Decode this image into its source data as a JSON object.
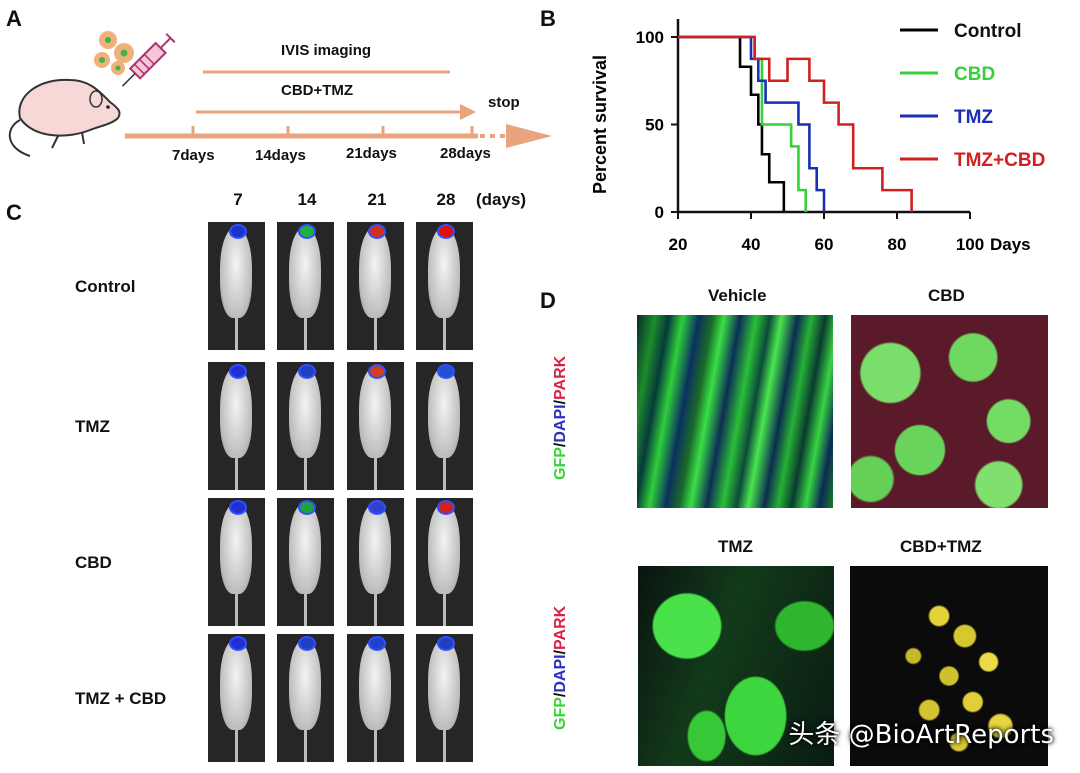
{
  "panels": {
    "a": "A",
    "b": "B",
    "c": "C",
    "d": "D"
  },
  "timeline": {
    "ivis": "IVIS imaging",
    "treatment": "CBD+TMZ",
    "stop": "stop",
    "days": [
      "7days",
      "14days",
      "21days",
      "28days"
    ]
  },
  "chart_data": {
    "type": "line",
    "ylabel": "Percent survival",
    "xlabel": "Days",
    "xlim": [
      20,
      100
    ],
    "ylim": [
      0,
      100
    ],
    "xticks": [
      20,
      40,
      60,
      80,
      100
    ],
    "yticks": [
      0,
      50,
      100
    ],
    "legend_position": "top-right",
    "series": [
      {
        "name": "Control",
        "color": "#000000",
        "x": [
          20,
          37,
          37,
          40,
          40,
          42,
          42,
          43,
          43,
          45,
          45,
          49,
          49
        ],
        "y": [
          100,
          100,
          83,
          83,
          67,
          67,
          50,
          50,
          33,
          33,
          17,
          17,
          0
        ]
      },
      {
        "name": "CBD",
        "color": "#35d03a",
        "x": [
          20,
          41,
          41,
          43,
          43,
          51,
          51,
          53,
          53,
          55,
          55
        ],
        "y": [
          100,
          100,
          87.5,
          87.5,
          50,
          50,
          37.5,
          37.5,
          12.5,
          12.5,
          0
        ]
      },
      {
        "name": "TMZ",
        "color": "#1a2fb5",
        "x": [
          20,
          40,
          40,
          42,
          42,
          44,
          44,
          53,
          53,
          56,
          56,
          58,
          58,
          60,
          60
        ],
        "y": [
          100,
          100,
          87.5,
          87.5,
          75,
          75,
          62.5,
          62.5,
          50,
          50,
          25,
          25,
          12.5,
          12.5,
          0
        ]
      },
      {
        "name": "TMZ+CBD",
        "color": "#d02020",
        "x": [
          20,
          41,
          41,
          45,
          45,
          50,
          50,
          56,
          56,
          60,
          60,
          64,
          64,
          68,
          68,
          76,
          76,
          84,
          84
        ],
        "y": [
          100,
          100,
          87.5,
          87.5,
          75,
          75,
          87.5,
          87.5,
          75,
          75,
          62.5,
          62.5,
          50,
          50,
          25,
          25,
          12.5,
          12.5,
          0
        ]
      }
    ]
  },
  "ivis_grid": {
    "day_labels": [
      "7",
      "14",
      "21",
      "28"
    ],
    "days_unit": "(days)",
    "rows": [
      "Control",
      "TMZ",
      "CBD",
      "TMZ + CBD"
    ]
  },
  "micro": {
    "titles": [
      "Vehicle",
      "CBD",
      "TMZ",
      "CBD+TMZ"
    ],
    "stain": {
      "gfp": "GFP",
      "sep": "/",
      "dapi": "DAPI",
      "park": "PARK"
    }
  },
  "watermark": "头条 @BioArtReports"
}
